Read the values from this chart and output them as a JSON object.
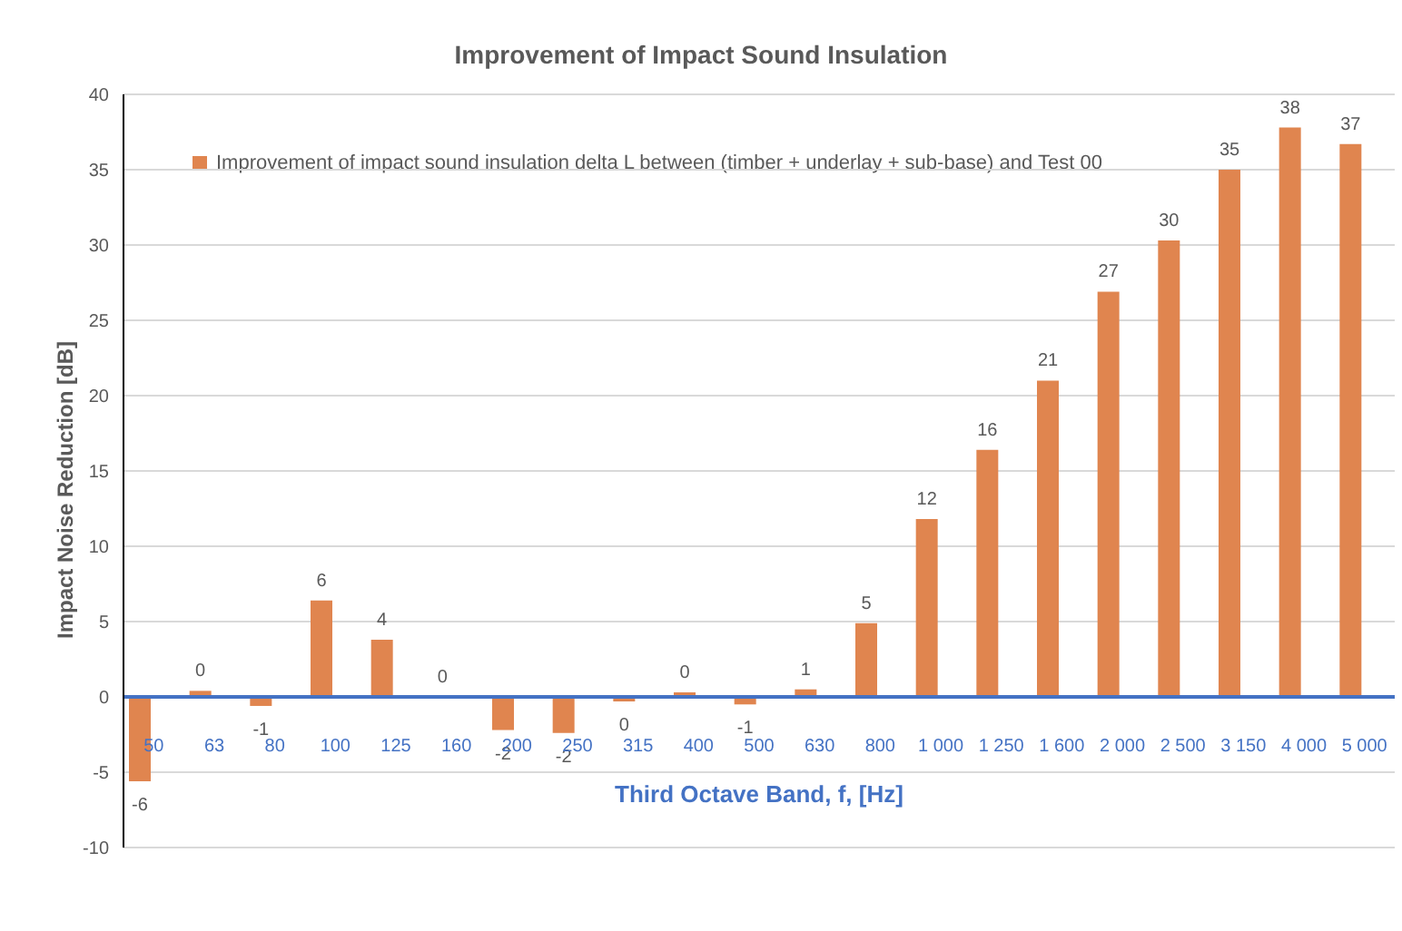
{
  "chart_data": {
    "type": "bar",
    "title": "Improvement of Impact Sound Insulation",
    "xlabel": "Third Octave Band, f, [Hz]",
    "ylabel": "Impact Noise Reduction [dB]",
    "categories": [
      "50",
      "63",
      "80",
      "100",
      "125",
      "160",
      "200",
      "250",
      "315",
      "400",
      "500",
      "630",
      "800",
      "1 000",
      "1 250",
      "1 600",
      "2 000",
      "2 500",
      "3 150",
      "4 000",
      "5 000"
    ],
    "series": [
      {
        "name": "Improvement of impact sound insulation delta L between (timber + underlay + sub-base) and Test 00",
        "color": "#e0854f",
        "values": [
          -5.6,
          0.4,
          -0.6,
          6.4,
          3.8,
          0,
          -2.2,
          -2.4,
          -0.3,
          0.3,
          -0.5,
          0.5,
          4.9,
          11.8,
          16.4,
          21.0,
          26.9,
          30.3,
          35.0,
          37.8,
          36.7
        ],
        "value_labels": [
          "-6",
          "0",
          "-1",
          "6",
          "4",
          "0",
          "-2",
          "-2",
          "0",
          "0",
          "-1",
          "1",
          "5",
          "12",
          "16",
          "21",
          "27",
          "30",
          "35",
          "38",
          "37"
        ]
      }
    ],
    "ylim": [
      -10,
      40
    ],
    "yticks": [
      -10,
      -5,
      0,
      5,
      10,
      15,
      20,
      25,
      30,
      35,
      40
    ],
    "grid": "y",
    "legend": "top left"
  }
}
